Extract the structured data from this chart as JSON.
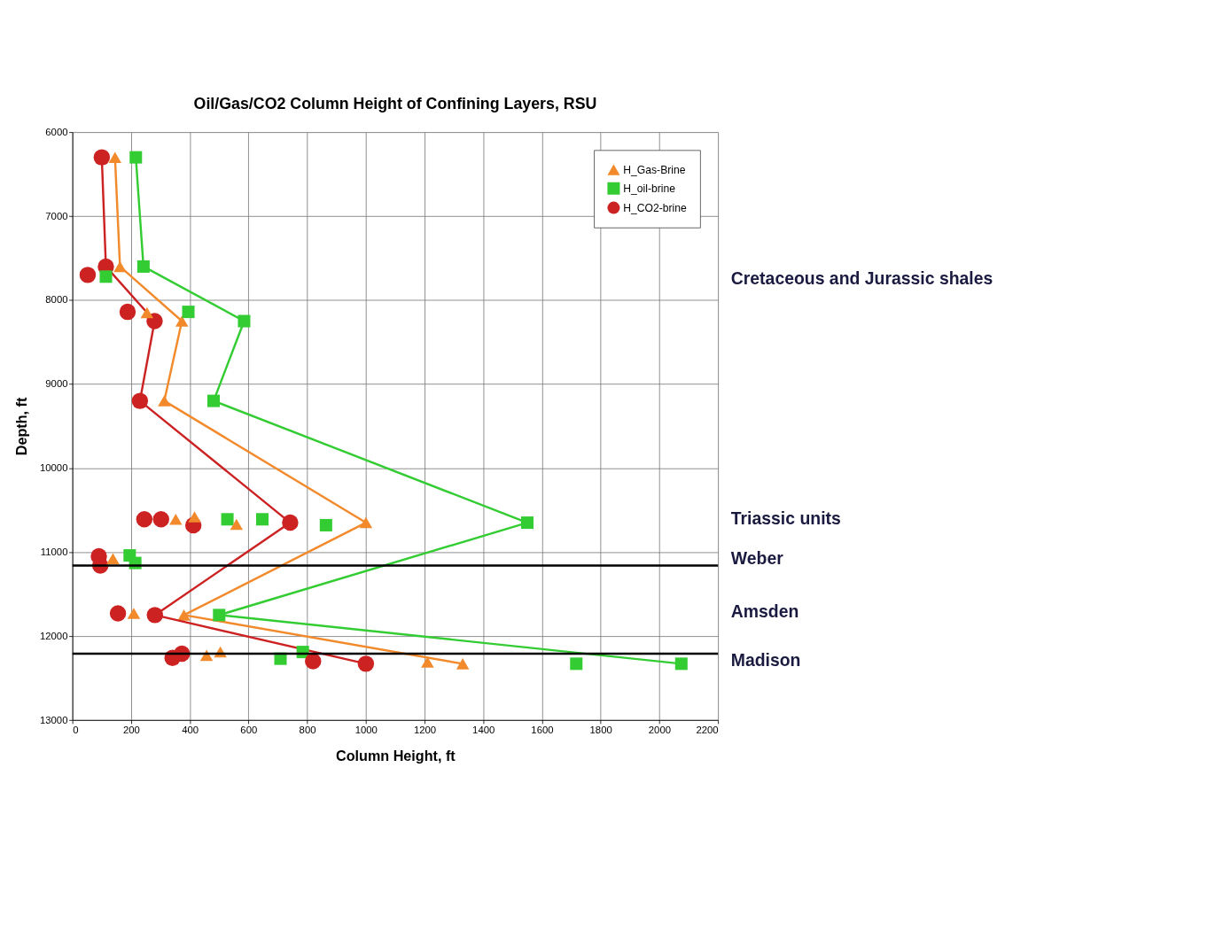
{
  "chart_data": {
    "type": "line",
    "title": "Oil/Gas/CO2 Column Height of Confining Layers, RSU",
    "xlabel": "Column Height, ft",
    "ylabel": "Depth, ft",
    "xlim": [
      0,
      2200
    ],
    "xticks": [
      0,
      200,
      400,
      600,
      800,
      1000,
      1200,
      1400,
      1600,
      1800,
      2000,
      2200
    ],
    "ylim": [
      13000,
      6000
    ],
    "yticks": [
      6000,
      7000,
      8000,
      9000,
      10000,
      11000,
      12000,
      13000
    ],
    "grid": true,
    "legend": "top right",
    "series": [
      {
        "name": "H_Gas-Brine",
        "marker": "triangle",
        "color": "#f28a2c",
        "x": [
          145,
          162,
          373,
          313,
          1000,
          380,
          1330
        ],
        "values": [
          6300,
          7600,
          8250,
          9200,
          10650,
          11750,
          12330
        ]
      },
      {
        "name": "H_oil-brine",
        "marker": "square",
        "color": "#33cc33",
        "x": [
          216,
          242,
          585,
          481,
          1550,
          500,
          2075
        ],
        "values": [
          6300,
          7600,
          8250,
          9200,
          10650,
          11750,
          12330
        ]
      },
      {
        "name": "H_CO2-brine",
        "marker": "circle",
        "color": "#cc2222",
        "x": [
          100,
          114,
          280,
          230,
          742,
          281,
          1000
        ],
        "values": [
          6300,
          7600,
          8250,
          9200,
          10650,
          11750,
          12330
        ]
      },
      {
        "type": "scatter",
        "marker": "square",
        "color": "#33cc33",
        "x": [
          114,
          395,
          528,
          647,
          864,
          195,
          214,
          709,
          785,
          1717
        ],
        "values": [
          7720,
          8140,
          10610,
          10610,
          10680,
          11040,
          11130,
          12270,
          12190,
          12330
        ]
      },
      {
        "type": "scatter",
        "marker": "circle",
        "color": "#cc2222",
        "x": [
          52,
          188,
          245,
          302,
          412,
          90,
          95,
          155,
          341,
          373,
          820
        ],
        "values": [
          7700,
          8140,
          10610,
          10610,
          10680,
          11050,
          11160,
          11730,
          12260,
          12210,
          12300
        ]
      },
      {
        "type": "scatter",
        "marker": "triangle",
        "color": "#f28a2c",
        "x": [
          254,
          352,
          416,
          559,
          138,
          209,
          457,
          504,
          1210
        ],
        "values": [
          8150,
          10610,
          10580,
          10670,
          11080,
          11730,
          12230,
          12190,
          12310
        ]
      }
    ],
    "ref_lines": [
      {
        "axis": "y",
        "value": 11160,
        "color": "#000000"
      },
      {
        "axis": "y",
        "value": 12210,
        "color": "#000000"
      }
    ],
    "annotations": [
      "Cretaceous and Jurassic shales",
      "Triassic units",
      "Weber",
      "Amsden",
      "Madison"
    ]
  }
}
